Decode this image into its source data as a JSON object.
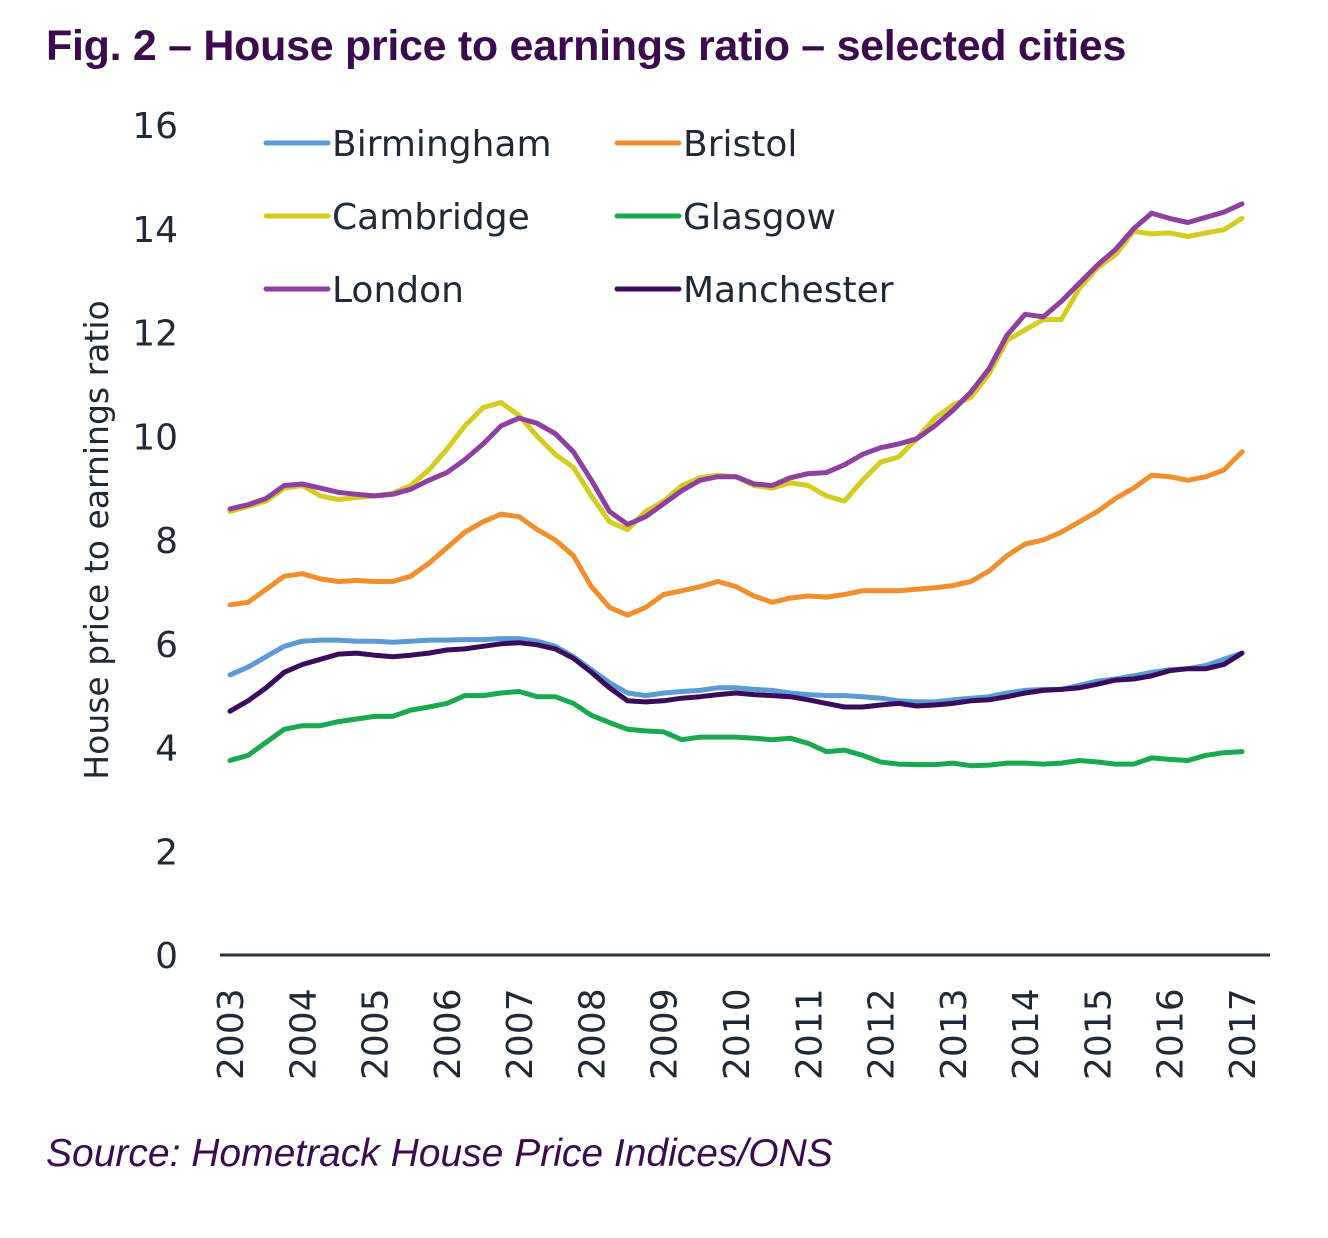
{
  "title": "Fig. 2 – House price to earnings ratio – selected cities",
  "source": "Source: Hometrack House Price Indices/ONS",
  "chart_data": {
    "type": "line",
    "title": "Fig. 2 – House price to earnings ratio – selected cities",
    "xlabel": "",
    "ylabel": "House price to earnings ratio",
    "ylim": [
      0,
      16
    ],
    "yticks": [
      0,
      2,
      4,
      6,
      8,
      10,
      12,
      14,
      16
    ],
    "xlim": [
      2003,
      2017
    ],
    "xticks": [
      "2003",
      "2004",
      "2005",
      "2006",
      "2007",
      "2008",
      "2009",
      "2010",
      "2011",
      "2012",
      "2013",
      "2014",
      "2015",
      "2016",
      "2017"
    ],
    "x_frequency": "quarterly",
    "grid": false,
    "legend_position": "top-left",
    "x": [
      2003.0,
      2003.25,
      2003.5,
      2003.75,
      2004.0,
      2004.25,
      2004.5,
      2004.75,
      2005.0,
      2005.25,
      2005.5,
      2005.75,
      2006.0,
      2006.25,
      2006.5,
      2006.75,
      2007.0,
      2007.25,
      2007.5,
      2007.75,
      2008.0,
      2008.25,
      2008.5,
      2008.75,
      2009.0,
      2009.25,
      2009.5,
      2009.75,
      2010.0,
      2010.25,
      2010.5,
      2010.75,
      2011.0,
      2011.25,
      2011.5,
      2011.75,
      2012.0,
      2012.25,
      2012.5,
      2012.75,
      2013.0,
      2013.25,
      2013.5,
      2013.75,
      2014.0,
      2014.25,
      2014.5,
      2014.75,
      2015.0,
      2015.25,
      2015.5,
      2015.75,
      2016.0,
      2016.25,
      2016.5,
      2016.75,
      2017.0
    ],
    "series": [
      {
        "name": "Birmingham",
        "color": "#5b9bd5",
        "values": [
          5.4,
          5.55,
          5.75,
          5.95,
          6.05,
          6.07,
          6.07,
          6.05,
          6.05,
          6.03,
          6.05,
          6.07,
          6.07,
          6.08,
          6.08,
          6.1,
          6.1,
          6.05,
          5.95,
          5.75,
          5.5,
          5.25,
          5.05,
          5.0,
          5.05,
          5.08,
          5.1,
          5.15,
          5.15,
          5.12,
          5.1,
          5.05,
          5.02,
          5.0,
          5.0,
          4.98,
          4.95,
          4.9,
          4.88,
          4.88,
          4.92,
          4.95,
          4.98,
          5.05,
          5.1,
          5.12,
          5.12,
          5.2,
          5.28,
          5.32,
          5.38,
          5.45,
          5.5,
          5.52,
          5.58,
          5.7,
          5.82
        ]
      },
      {
        "name": "Bristol",
        "color": "#f28e2b",
        "values": [
          6.75,
          6.8,
          7.05,
          7.3,
          7.35,
          7.25,
          7.2,
          7.22,
          7.2,
          7.2,
          7.3,
          7.55,
          7.85,
          8.15,
          8.35,
          8.5,
          8.45,
          8.2,
          8.0,
          7.7,
          7.1,
          6.7,
          6.55,
          6.7,
          6.95,
          7.02,
          7.1,
          7.2,
          7.1,
          6.92,
          6.8,
          6.88,
          6.92,
          6.9,
          6.95,
          7.02,
          7.02,
          7.02,
          7.05,
          7.08,
          7.12,
          7.2,
          7.4,
          7.7,
          7.92,
          8.0,
          8.15,
          8.35,
          8.55,
          8.8,
          9.0,
          9.25,
          9.22,
          9.15,
          9.22,
          9.35,
          9.7
        ]
      },
      {
        "name": "Cambridge",
        "color": "#d4cc1f",
        "values": [
          8.55,
          8.65,
          8.75,
          9.0,
          9.05,
          8.85,
          8.78,
          8.82,
          8.85,
          8.9,
          9.05,
          9.35,
          9.75,
          10.2,
          10.55,
          10.65,
          10.4,
          10.0,
          9.65,
          9.4,
          8.85,
          8.35,
          8.2,
          8.55,
          8.75,
          9.05,
          9.2,
          9.25,
          9.22,
          9.05,
          9.0,
          9.1,
          9.05,
          8.85,
          8.75,
          9.15,
          9.5,
          9.6,
          9.95,
          10.35,
          10.6,
          10.75,
          11.2,
          11.85,
          12.05,
          12.25,
          12.25,
          12.85,
          13.25,
          13.5,
          13.95,
          13.9,
          13.92,
          13.85,
          13.92,
          13.98,
          14.2
        ]
      },
      {
        "name": "Glasgow",
        "color": "#1aa850",
        "values": [
          3.75,
          3.85,
          4.1,
          4.35,
          4.42,
          4.42,
          4.5,
          4.55,
          4.6,
          4.6,
          4.72,
          4.78,
          4.85,
          5.0,
          5.0,
          5.05,
          5.08,
          4.98,
          4.98,
          4.85,
          4.62,
          4.48,
          4.35,
          4.32,
          4.3,
          4.15,
          4.2,
          4.2,
          4.2,
          4.18,
          4.15,
          4.18,
          4.08,
          3.92,
          3.95,
          3.85,
          3.72,
          3.68,
          3.67,
          3.67,
          3.7,
          3.65,
          3.66,
          3.7,
          3.7,
          3.68,
          3.7,
          3.75,
          3.72,
          3.68,
          3.68,
          3.8,
          3.77,
          3.75,
          3.85,
          3.9,
          3.92
        ]
      },
      {
        "name": "London",
        "color": "#8e3fa0",
        "values": [
          8.6,
          8.68,
          8.8,
          9.05,
          9.08,
          9.0,
          8.92,
          8.88,
          8.85,
          8.88,
          8.98,
          9.15,
          9.3,
          9.55,
          9.85,
          10.2,
          10.35,
          10.25,
          10.05,
          9.7,
          9.15,
          8.55,
          8.3,
          8.45,
          8.7,
          8.95,
          9.15,
          9.22,
          9.22,
          9.08,
          9.05,
          9.2,
          9.28,
          9.3,
          9.45,
          9.65,
          9.78,
          9.85,
          9.95,
          10.2,
          10.5,
          10.85,
          11.3,
          11.95,
          12.35,
          12.3,
          12.6,
          12.95,
          13.3,
          13.6,
          14.0,
          14.3,
          14.2,
          14.12,
          14.22,
          14.32,
          14.48
        ]
      },
      {
        "name": "Manchester",
        "color": "#3a0d5c",
        "values": [
          4.7,
          4.9,
          5.15,
          5.45,
          5.6,
          5.7,
          5.8,
          5.82,
          5.78,
          5.75,
          5.78,
          5.82,
          5.88,
          5.9,
          5.95,
          6.0,
          6.02,
          5.98,
          5.9,
          5.72,
          5.45,
          5.15,
          4.9,
          4.88,
          4.9,
          4.95,
          4.98,
          5.02,
          5.05,
          5.02,
          5.0,
          4.98,
          4.92,
          4.85,
          4.78,
          4.78,
          4.82,
          4.85,
          4.8,
          4.82,
          4.85,
          4.9,
          4.92,
          4.98,
          5.05,
          5.1,
          5.12,
          5.15,
          5.22,
          5.3,
          5.32,
          5.38,
          5.48,
          5.52,
          5.52,
          5.6,
          5.82
        ]
      }
    ]
  }
}
